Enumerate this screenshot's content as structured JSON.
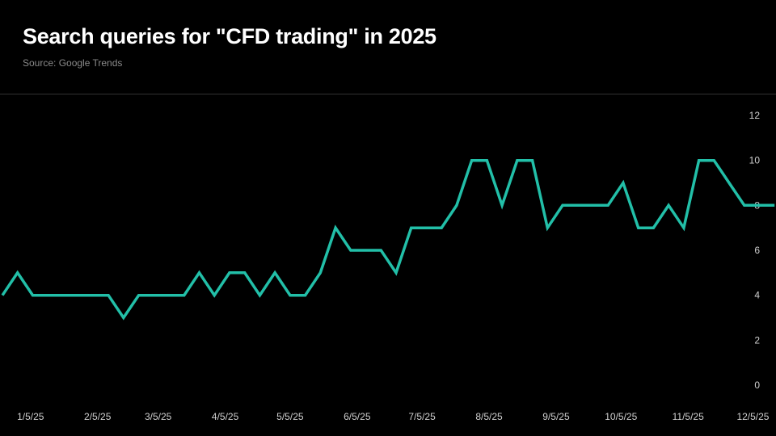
{
  "chart_data": {
    "type": "line",
    "title": "Search queries for \"CFD trading\" in 2025",
    "subtitle": "Source: Google Trends",
    "xlabel": "",
    "ylabel": "",
    "ylim": [
      0,
      12
    ],
    "yticks": [
      "0",
      "2",
      "4",
      "6",
      "8",
      "10",
      "12"
    ],
    "y_axis_position": "right",
    "grid": false,
    "x_start": "2024-12-23",
    "x_step_days": 7,
    "xticks": [
      {
        "label": "1/5/25",
        "date": "2025-01-05"
      },
      {
        "label": "2/5/25",
        "date": "2025-02-05"
      },
      {
        "label": "3/5/25",
        "date": "2025-03-05"
      },
      {
        "label": "4/5/25",
        "date": "2025-04-05"
      },
      {
        "label": "5/5/25",
        "date": "2025-05-05"
      },
      {
        "label": "6/5/25",
        "date": "2025-06-05"
      },
      {
        "label": "7/5/25",
        "date": "2025-07-05"
      },
      {
        "label": "8/5/25",
        "date": "2025-08-05"
      },
      {
        "label": "9/5/25",
        "date": "2025-09-05"
      },
      {
        "label": "10/5/25",
        "date": "2025-10-05"
      },
      {
        "label": "11/5/25",
        "date": "2025-11-05"
      },
      {
        "label": "12/5/25",
        "date": "2025-12-05"
      }
    ],
    "series": [
      {
        "name": "CFD trading",
        "color": "#22bfa8",
        "values": [
          4,
          5,
          4,
          4,
          4,
          4,
          4,
          4,
          3,
          4,
          4,
          4,
          4,
          5,
          4,
          5,
          5,
          4,
          5,
          4,
          4,
          5,
          7,
          6,
          6,
          6,
          5,
          7,
          7,
          7,
          8,
          10,
          10,
          8,
          10,
          10,
          7,
          8,
          8,
          8,
          8,
          9,
          7,
          7,
          8,
          7,
          10,
          10,
          9,
          8,
          8,
          8
        ]
      }
    ]
  }
}
